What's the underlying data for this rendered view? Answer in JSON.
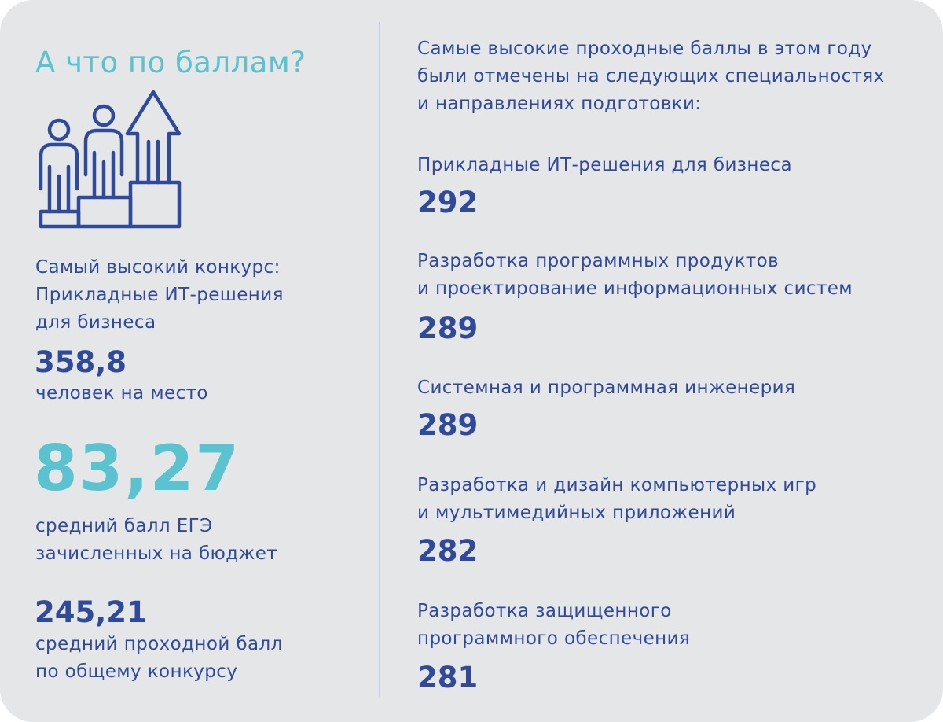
{
  "colors": {
    "background": "#e5e6e8",
    "primary_blue": "#2f4a9a",
    "accent_teal": "#5bc2cf"
  },
  "left": {
    "title": "А что по баллам?",
    "icon": "podium-people-arrow-up-icon",
    "contest_label": "Самый высокий конкурс:\nПрикладные ИТ-решения\nдля бизнеса",
    "contest_value": "358,8",
    "contest_unit": "человек на место",
    "avg_ege_value": "83,27",
    "avg_ege_label": "средний балл ЕГЭ\nзачисленных на бюджет",
    "avg_pass_value": "245,21",
    "avg_pass_label": "средний проходной балл\nпо общему конкурсу"
  },
  "right": {
    "intro": "Самые высокие проходные баллы в этом году\nбыли отмечены на следующих специальностях\nи направлениях подготовки:",
    "items": [
      {
        "name": "Прикладные ИТ-решения для бизнеса",
        "score": "292"
      },
      {
        "name": "Разработка программных продуктов\nи проектирование информационных систем",
        "score": "289"
      },
      {
        "name": "Системная и программная инженерия",
        "score": "289"
      },
      {
        "name": "Разработка и дизайн компьютерных игр\nи мультимедийных приложений",
        "score": "282"
      },
      {
        "name": "Разработка защищенного\nпрограммного обеспечения",
        "score": "281"
      }
    ]
  }
}
